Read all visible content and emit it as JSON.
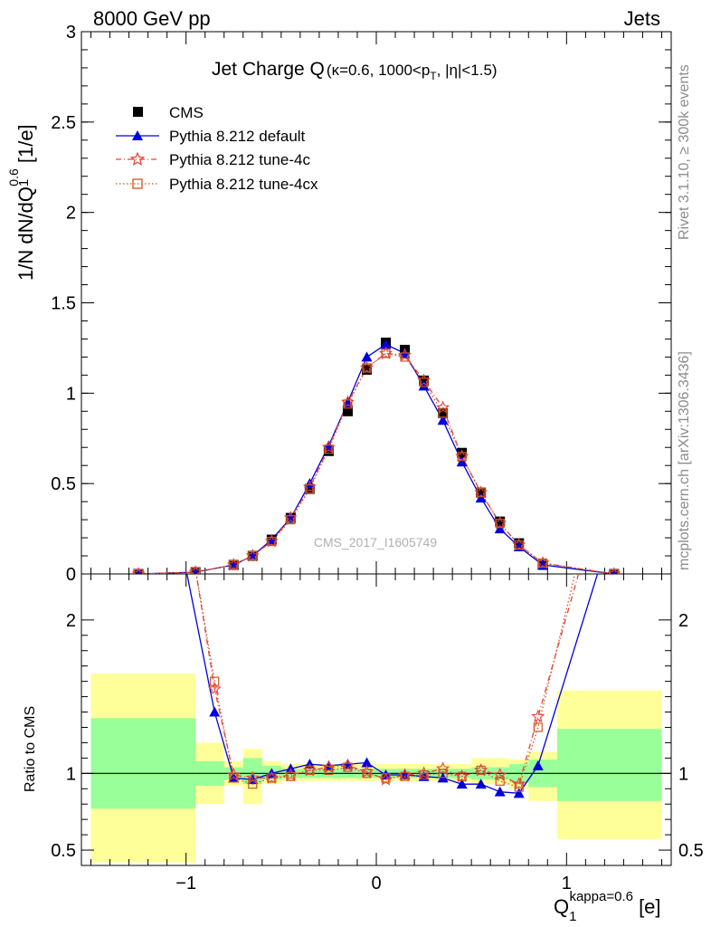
{
  "header": {
    "left": "8000 GeV pp",
    "right": "Jets"
  },
  "side_labels": {
    "rivet": "Rivet 3.1.10, ≥ 300k events",
    "mcplots": "mcplots.cern.ch [arXiv:1306.3436]"
  },
  "colors": {
    "cms": "#000000",
    "default": "#0000dd",
    "tune4c": "#e8413a",
    "tune4cx": "#cc5522",
    "band_inner": "#99ff99",
    "band_outer": "#ffff99"
  },
  "chart_data": [
    {
      "type": "line",
      "title_main": "Jet Charge Q",
      "title_sub": "(κ=0.6, 1000<p",
      "title_sub_T": "T",
      "title_sub_end": ", |η|<1.5)",
      "ylabel": "1/N dN/dQ",
      "ylabel_sup": "0.6",
      "ylabel_sub": "1",
      "ylabel_unit": " [1/e]",
      "watermark": "CMS_2017_I1605749",
      "xlim": [
        -1.55,
        1.55
      ],
      "ylim": [
        0,
        3
      ],
      "y_ticks": [
        "0",
        "0.5",
        "1",
        "1.5",
        "2",
        "2.5",
        "3"
      ],
      "legend_position": "top-left",
      "x": [
        -1.25,
        -0.95,
        -0.75,
        -0.65,
        -0.55,
        -0.45,
        -0.35,
        -0.25,
        -0.15,
        -0.05,
        0.05,
        0.15,
        0.25,
        0.35,
        0.45,
        0.55,
        0.65,
        0.75,
        0.875,
        1.25
      ],
      "series": [
        {
          "name": "CMS",
          "style": "square",
          "values": [
            0.0,
            0.01,
            0.05,
            0.1,
            0.19,
            0.31,
            0.47,
            0.68,
            0.9,
            1.13,
            1.28,
            1.24,
            1.07,
            0.89,
            0.67,
            0.45,
            0.29,
            0.17,
            0.05,
            0.0
          ]
        },
        {
          "name": "Pythia 8.212 default",
          "style": "triangle",
          "values": [
            0.0,
            0.01,
            0.05,
            0.1,
            0.19,
            0.31,
            0.5,
            0.71,
            0.95,
            1.2,
            1.27,
            1.22,
            1.04,
            0.85,
            0.62,
            0.42,
            0.25,
            0.15,
            0.05,
            0.0
          ]
        },
        {
          "name": "Pythia 8.212 tune-4c",
          "style": "star",
          "values": [
            0.0,
            0.01,
            0.05,
            0.1,
            0.18,
            0.31,
            0.48,
            0.7,
            0.95,
            1.14,
            1.22,
            1.21,
            1.07,
            0.92,
            0.65,
            0.45,
            0.28,
            0.16,
            0.06,
            0.0
          ]
        },
        {
          "name": "Pythia 8.212 tune-4cx",
          "style": "opensquare",
          "values": [
            0.0,
            0.01,
            0.05,
            0.1,
            0.18,
            0.3,
            0.47,
            0.69,
            0.94,
            1.14,
            1.22,
            1.2,
            1.06,
            0.89,
            0.65,
            0.45,
            0.28,
            0.16,
            0.06,
            0.0
          ]
        }
      ]
    },
    {
      "type": "line",
      "ylabel": "Ratio to CMS",
      "xlabel": "Q",
      "xlabel_sup": "kappa=0.6",
      "xlabel_sub": "1",
      "xlabel_unit": " [e]",
      "xlim": [
        -1.55,
        1.55
      ],
      "ylim": [
        0.4,
        2.3
      ],
      "x_ticks": [
        "−1",
        "0",
        "1"
      ],
      "y_ticks": [
        "0.5",
        "1",
        "2"
      ],
      "bands": [
        {
          "lo": -1.5,
          "hi": -0.95,
          "inner": [
            0.77,
            1.36
          ],
          "outer": [
            0.42,
            1.65
          ]
        },
        {
          "lo": -0.95,
          "hi": -0.8,
          "inner": [
            0.92,
            1.08
          ],
          "outer": [
            0.8,
            1.2
          ]
        },
        {
          "lo": -0.8,
          "hi": -0.7,
          "inner": [
            0.96,
            1.04
          ],
          "outer": [
            0.92,
            1.08
          ]
        },
        {
          "lo": -0.7,
          "hi": -0.6,
          "inner": [
            0.93,
            1.1
          ],
          "outer": [
            0.8,
            1.16
          ]
        },
        {
          "lo": -0.6,
          "hi": -0.5,
          "inner": [
            0.96,
            1.05
          ],
          "outer": [
            0.93,
            1.08
          ]
        },
        {
          "lo": -0.5,
          "hi": 0.5,
          "inner": [
            0.97,
            1.03
          ],
          "outer": [
            0.95,
            1.06
          ]
        },
        {
          "lo": 0.5,
          "hi": 0.7,
          "inner": [
            0.96,
            1.04
          ],
          "outer": [
            0.93,
            1.1
          ]
        },
        {
          "lo": 0.7,
          "hi": 0.8,
          "inner": [
            0.94,
            1.06
          ],
          "outer": [
            0.9,
            1.09
          ]
        },
        {
          "lo": 0.8,
          "hi": 0.95,
          "inner": [
            0.91,
            1.09
          ],
          "outer": [
            0.82,
            1.14
          ]
        },
        {
          "lo": 0.95,
          "hi": 1.5,
          "inner": [
            0.82,
            1.29
          ],
          "outer": [
            0.57,
            1.54
          ]
        }
      ],
      "x": [
        -0.95,
        -0.85,
        -0.75,
        -0.65,
        -0.55,
        -0.45,
        -0.35,
        -0.25,
        -0.15,
        -0.05,
        0.05,
        0.15,
        0.25,
        0.35,
        0.45,
        0.55,
        0.65,
        0.75,
        0.85,
        0.95,
        1.2
      ],
      "series": [
        {
          "name": "Pythia 8.212 default",
          "values": [
            null,
            1.4,
            0.97,
            0.96,
            1.0,
            1.03,
            1.06,
            1.05,
            1.06,
            1.07,
            0.99,
            0.99,
            0.98,
            0.97,
            0.93,
            0.93,
            0.88,
            0.87,
            1.05,
            2.3,
            2.3
          ]
        },
        {
          "name": "Pythia 8.212 tune-4c",
          "values": [
            null,
            1.55,
            0.99,
            0.97,
            0.97,
            0.99,
            1.02,
            1.04,
            1.05,
            1.01,
            0.96,
            0.99,
            1.0,
            1.03,
            0.98,
            1.02,
            0.99,
            0.93,
            1.37,
            2.3,
            2.3
          ]
        },
        {
          "name": "Pythia 8.212 tune-4cx",
          "values": [
            null,
            1.6,
            0.97,
            0.93,
            0.97,
            0.98,
            1.02,
            1.02,
            1.04,
            1.0,
            0.97,
            0.98,
            0.99,
            1.0,
            0.98,
            1.02,
            0.95,
            0.91,
            1.3,
            2.3,
            2.3
          ]
        }
      ]
    }
  ]
}
